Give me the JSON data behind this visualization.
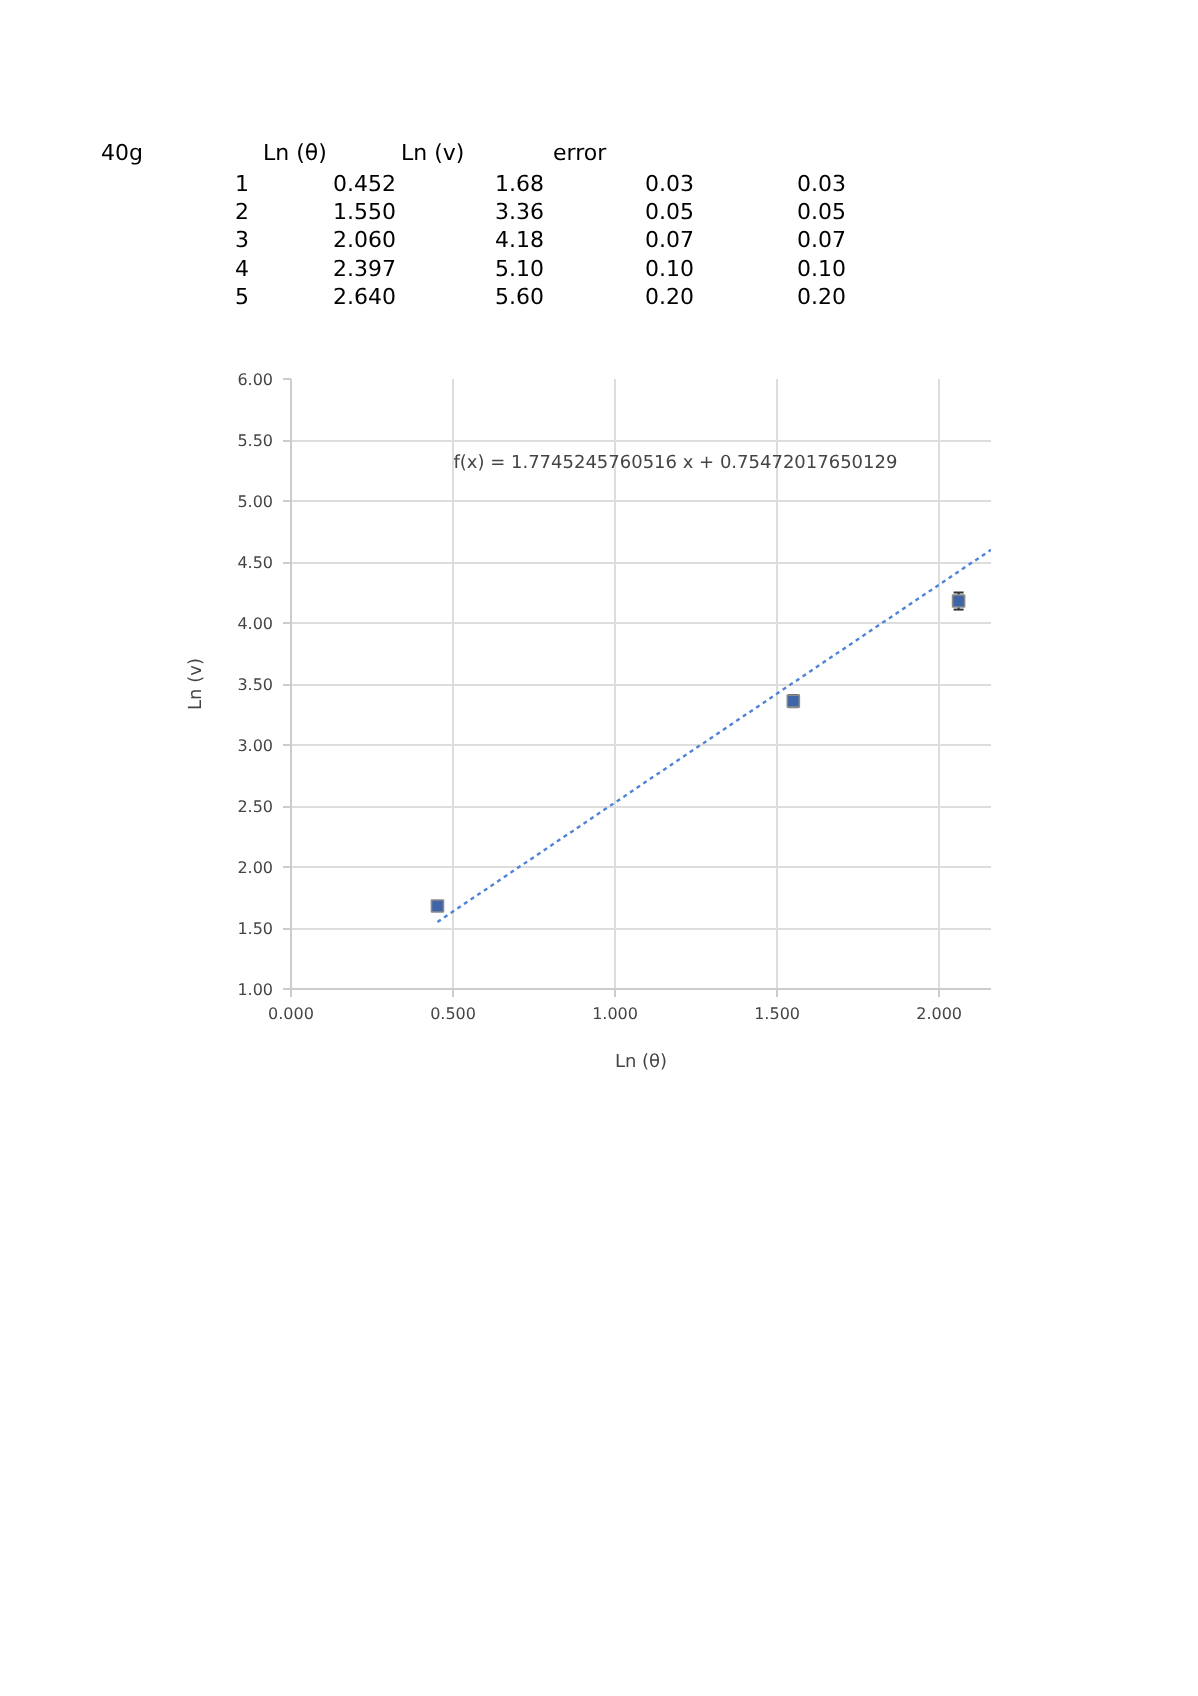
{
  "chart_data": {
    "type": "scatter",
    "xlabel": "Ln (θ)",
    "ylabel": "Ln (v)",
    "annotations": [
      "40g",
      "Ln (θ)",
      "Ln (v)",
      "error",
      "1",
      "0.452",
      "1.68",
      "0.03",
      "0.03",
      "2",
      "1.550",
      "3.36",
      "0.05",
      "0.05",
      "3",
      "2.060",
      "4.18",
      "0.07",
      "0.07",
      "4",
      "2.397",
      "5.10",
      "0.10",
      "0.10",
      "5",
      "2.640",
      "5.60",
      "0.20",
      "0.20",
      "f(x) = 1.7745245760516 x + 0.75472017650129"
    ],
    "series": [
      {
        "color": "#3d65a8",
        "marker": "square",
        "x": [
          0.452,
          1.55,
          2.06
        ],
        "values": [
          1.68,
          3.36,
          4.18
        ],
        "errors": [
          0.03,
          0.05,
          0.07
        ]
      },
      {
        "type": "line",
        "color": "#4f82d9",
        "line_style": "dotted",
        "x": [
          0.452,
          2.16
        ],
        "values": [
          1.55,
          4.6
        ]
      }
    ],
    "xlim": [
      0,
      2.16
    ],
    "xticks": [
      {
        "value": 0,
        "label": "0.000"
      },
      {
        "value": 0.5,
        "label": "0.500"
      },
      {
        "value": 1,
        "label": "1.000"
      },
      {
        "value": 1.5,
        "label": "1.500"
      },
      {
        "value": 2,
        "label": "2.000"
      }
    ],
    "ylim": [
      1,
      6
    ],
    "yticks": [
      {
        "value": 1,
        "label": "1.00"
      },
      {
        "value": 1.5,
        "label": "1.50"
      },
      {
        "value": 2,
        "label": "2.00"
      },
      {
        "value": 2.5,
        "label": "2.50"
      },
      {
        "value": 3,
        "label": "3.00"
      },
      {
        "value": 3.5,
        "label": "3.50"
      },
      {
        "value": 4,
        "label": "4.00"
      },
      {
        "value": 4.5,
        "label": "4.50"
      },
      {
        "value": 5,
        "label": "5.00"
      },
      {
        "value": 5.5,
        "label": "5.50"
      },
      {
        "value": 6,
        "label": "6.00"
      }
    ],
    "grid": true
  }
}
